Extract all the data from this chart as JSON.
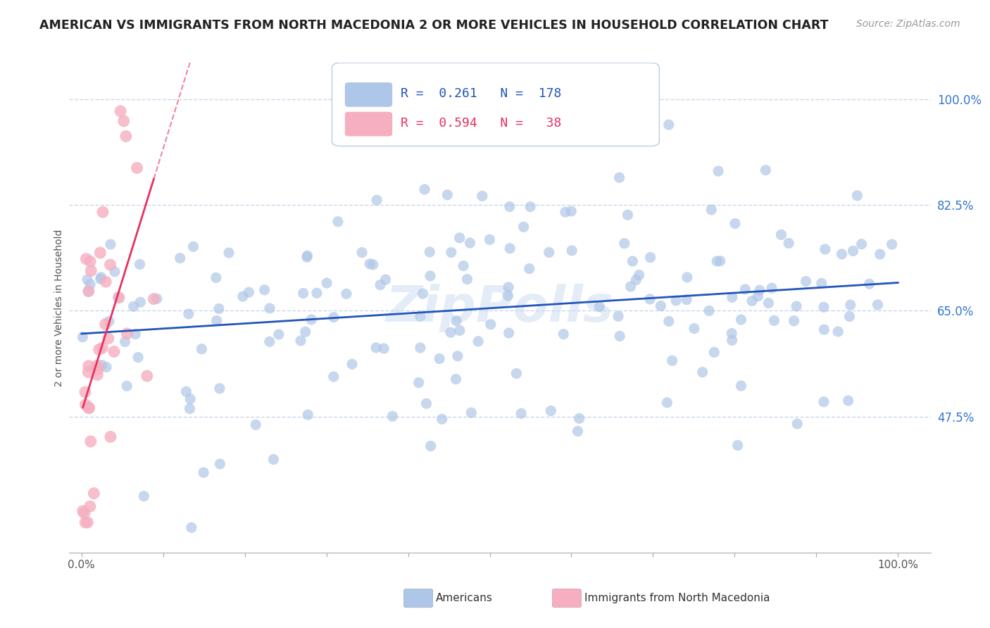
{
  "title": "AMERICAN VS IMMIGRANTS FROM NORTH MACEDONIA 2 OR MORE VEHICLES IN HOUSEHOLD CORRELATION CHART",
  "source": "Source: ZipAtlas.com",
  "ylabel": "2 or more Vehicles in Household",
  "watermark": "ZipPolls",
  "r_american": 0.261,
  "n_american": 178,
  "r_immigrant": 0.594,
  "n_immigrant": 38,
  "american_color": "#aec6e8",
  "immigrant_color": "#f5afc0",
  "trend_american_color": "#2255bb",
  "trend_immigrant_color": "#e83060",
  "background_color": "#ffffff",
  "grid_color": "#c8d8ea",
  "ytick_labels": [
    "100.0%",
    "82.5%",
    "65.0%",
    "47.5%"
  ],
  "ytick_values": [
    1.0,
    0.825,
    0.65,
    0.475
  ],
  "xtick_labels": [
    "0.0%",
    "",
    "",
    "",
    "",
    "",
    "",
    "",
    "",
    "",
    "100.0%"
  ],
  "xtick_values": [
    0.0,
    0.1,
    0.2,
    0.3,
    0.4,
    0.5,
    0.6,
    0.7,
    0.8,
    0.9,
    1.0
  ],
  "xmin": -0.015,
  "xmax": 1.04,
  "ymin": 0.25,
  "ymax": 1.06,
  "legend_bottom_labels": [
    "Americans",
    "Immigrants from North Macedonia"
  ],
  "legend_bottom_colors": [
    "#aec6e8",
    "#f5afc0"
  ]
}
